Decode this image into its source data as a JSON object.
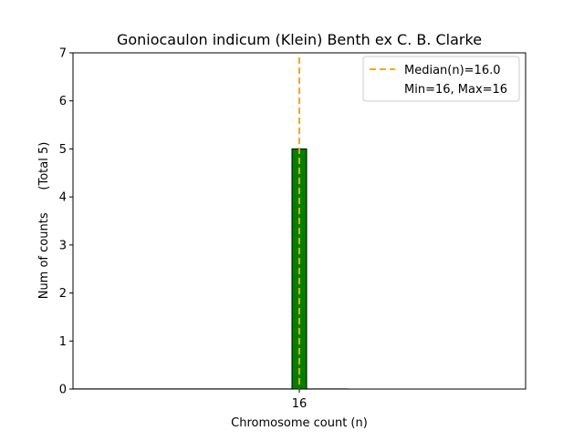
{
  "chart_data": {
    "type": "bar",
    "title": "Goniocaulon indicum (Klein) Benth ex C. B. Clarke",
    "xlabel": "Chromosome count (n)",
    "ylabel": "Num of counts      (Total 5)",
    "categories": [
      "16"
    ],
    "x": [
      16
    ],
    "values": [
      5
    ],
    "bar_width": 0.1,
    "xlim": [
      14.45,
      17.55
    ],
    "ylim": [
      0,
      7
    ],
    "yticks": [
      0,
      1,
      2,
      3,
      4,
      5,
      6,
      7
    ],
    "xticks": [
      16
    ],
    "xtick_labels": [
      "16"
    ],
    "baseline_extent": [
      14.45,
      16.34
    ],
    "median": 16.0,
    "legend": {
      "placement": "top-right",
      "entries": [
        "Median(n)=16.0",
        "Min=16, Max=16"
      ]
    },
    "grid": false,
    "colors": {
      "bar": "#008000",
      "edge": "#000000",
      "median": "#ffa500",
      "baseline": "#b0b0b0"
    }
  }
}
